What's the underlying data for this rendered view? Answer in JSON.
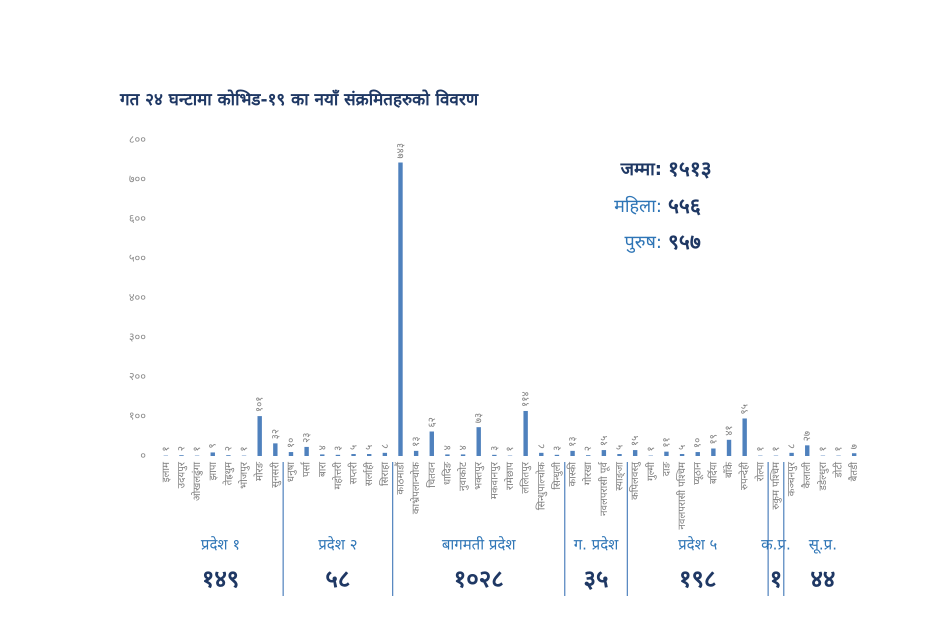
{
  "chart_data": {
    "type": "bar",
    "title": "गत २४ घन्टामा कोभिड-१९ का नयाँ संक्रमितहरुको विवरण",
    "color": "#4f81bd",
    "ylim": [
      0,
      800
    ],
    "yticks": [
      {
        "value": 0,
        "label": "०"
      },
      {
        "value": 100,
        "label": "१००"
      },
      {
        "value": 200,
        "label": "२००"
      },
      {
        "value": 300,
        "label": "३००"
      },
      {
        "value": 400,
        "label": "४००"
      },
      {
        "value": 500,
        "label": "५००"
      },
      {
        "value": 600,
        "label": "६००"
      },
      {
        "value": 700,
        "label": "७००"
      },
      {
        "value": 800,
        "label": "८००"
      }
    ],
    "summary": [
      {
        "label": "जम्मा:",
        "value": 1513,
        "value_label": "१५१३"
      },
      {
        "label": "महिला:",
        "value": 556,
        "value_label": "५५६"
      },
      {
        "label": "पुरुष:",
        "value": 957,
        "value_label": "९५७"
      }
    ],
    "groups": [
      {
        "name": "प्रदेश १",
        "total": 149,
        "total_label": "१४९",
        "categories": [
          "इलाम",
          "उदयपुर",
          "ओखलढुंगा",
          "झापा",
          "तेह्रथुम",
          "भोजपुर",
          "मोरङ",
          "सुनसरी"
        ],
        "values": [
          1,
          2,
          1,
          9,
          2,
          1,
          101,
          32
        ],
        "value_labels": [
          "१",
          "२",
          "१",
          "९",
          "२",
          "१",
          "१०१",
          "३२"
        ]
      },
      {
        "name": "प्रदेश २",
        "total": 58,
        "total_label": "५८",
        "categories": [
          "धनुषा",
          "पर्सा",
          "बारा",
          "महोत्तरी",
          "सप्तरी",
          "सर्लाही",
          "सिराहा"
        ],
        "values": [
          10,
          23,
          4,
          3,
          5,
          5,
          8
        ],
        "value_labels": [
          "१०",
          "२३",
          "४",
          "३",
          "५",
          "५",
          "८"
        ]
      },
      {
        "name": "बागमती प्रदेश",
        "total": 1028,
        "total_label": "१०२८",
        "categories": [
          "काठमाडौं",
          "काभ्रेपलान्चोक",
          "चितवन",
          "धादिङ",
          "नुवाकोट",
          "भक्तपुर",
          "मकवानपुर",
          "रामेछाप",
          "ललितपुर",
          "सिन्धुपाल्चोक",
          "सिन्धुली"
        ],
        "values": [
          743,
          13,
          62,
          4,
          4,
          73,
          3,
          1,
          114,
          8,
          3
        ],
        "value_labels": [
          "७४३",
          "१३",
          "६२",
          "४",
          "४",
          "७३",
          "३",
          "१",
          "११४",
          "८",
          "३"
        ]
      },
      {
        "name": "ग. प्रदेश",
        "total": 35,
        "total_label": "३५",
        "categories": [
          "कास्की",
          "गोरखा",
          "नवलपरासी पूर्व",
          "स्याङ्जा"
        ],
        "values": [
          13,
          2,
          15,
          5
        ],
        "value_labels": [
          "१३",
          "२",
          "१५",
          "५"
        ]
      },
      {
        "name": "प्रदेश ५",
        "total": 198,
        "total_label": "१९८",
        "categories": [
          "कपिलवस्तु",
          "गुल्मी",
          "दाङ",
          "नवलपरासी पश्चिम",
          "प्यूठान",
          "बर्दिया",
          "बाँके",
          "रुपन्देही",
          "रोल्पा"
        ],
        "values": [
          15,
          1,
          11,
          5,
          10,
          19,
          41,
          95,
          1
        ],
        "value_labels": [
          "१५",
          "१",
          "११",
          "५",
          "१०",
          "१९",
          "४१",
          "९५",
          "१"
        ]
      },
      {
        "name": "क.प्र.",
        "total": 1,
        "total_label": "१",
        "categories": [
          "रुकुम पश्चिम"
        ],
        "values": [
          1
        ],
        "value_labels": [
          "१"
        ]
      },
      {
        "name": "सू.प्र.",
        "total": 44,
        "total_label": "४४",
        "categories": [
          "कञ्चनपुर",
          "कैलाली",
          "डडेल्धुरा",
          "डोटी",
          "बैतडी"
        ],
        "values": [
          8,
          27,
          1,
          1,
          7
        ],
        "value_labels": [
          "८",
          "२७",
          "१",
          "१",
          "७"
        ]
      }
    ]
  }
}
